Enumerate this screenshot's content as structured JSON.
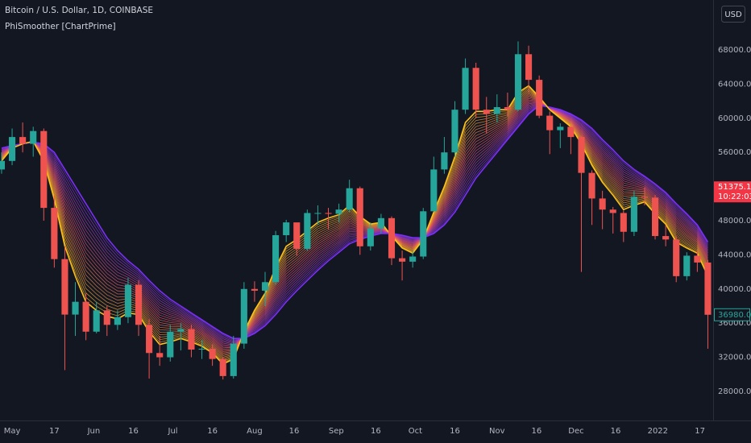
{
  "chart_data": {
    "type": "candlestick",
    "title": "Bitcoin / U.S. Dollar, 1D, COINBASE",
    "indicator": "PhiSmoother [ChartPrime]",
    "currency": "USD",
    "indicator_value": 51375.13,
    "countdown": "10:22:03",
    "last_price": 36980,
    "last_price_label": "36980.00",
    "up_color": "#26a69a",
    "down_color": "#ef5350",
    "fast_color": "#ffc21a",
    "slow_color": "#7b2ff7",
    "indicator_color": "#f23645",
    "grid": false,
    "xlim": [
      -4.6,
      266
    ],
    "ylim": [
      24600,
      73850
    ],
    "xticks": [
      {
        "value": 0,
        "label": "May"
      },
      {
        "value": 16,
        "label": "17"
      },
      {
        "value": 31,
        "label": "Jun"
      },
      {
        "value": 46,
        "label": "16"
      },
      {
        "value": 61,
        "label": "Jul"
      },
      {
        "value": 76,
        "label": "16"
      },
      {
        "value": 92,
        "label": "Aug"
      },
      {
        "value": 107,
        "label": "16"
      },
      {
        "value": 123,
        "label": "Sep"
      },
      {
        "value": 138,
        "label": "16"
      },
      {
        "value": 153,
        "label": "Oct"
      },
      {
        "value": 168,
        "label": "16"
      },
      {
        "value": 184,
        "label": "Nov"
      },
      {
        "value": 199,
        "label": "16"
      },
      {
        "value": 214,
        "label": "Dec"
      },
      {
        "value": 229,
        "label": "16"
      },
      {
        "value": 245,
        "label": "2022"
      },
      {
        "value": 261,
        "label": "17"
      }
    ],
    "yticks": [
      {
        "value": 28000,
        "label": "28000.00"
      },
      {
        "value": 32000,
        "label": "32000.00"
      },
      {
        "value": 36000,
        "label": "36000.00"
      },
      {
        "value": 40000,
        "label": "40000.00"
      },
      {
        "value": 44000,
        "label": "44000.00"
      },
      {
        "value": 48000,
        "label": "48000.00"
      },
      {
        "value": 52000,
        "label": "52000.00"
      },
      {
        "value": 56000,
        "label": "56000.00"
      },
      {
        "value": 60000,
        "label": "60000.00"
      },
      {
        "value": 64000,
        "label": "64000.00"
      },
      {
        "value": 68000,
        "label": "68000.00"
      }
    ],
    "x": [
      -4,
      0,
      4,
      8,
      12,
      16,
      20,
      24,
      28,
      32,
      36,
      40,
      44,
      48,
      52,
      56,
      60,
      64,
      68,
      72,
      76,
      80,
      84,
      88,
      92,
      96,
      100,
      104,
      108,
      112,
      116,
      120,
      124,
      128,
      132,
      136,
      140,
      144,
      148,
      152,
      156,
      160,
      164,
      168,
      172,
      176,
      180,
      184,
      188,
      192,
      196,
      200,
      204,
      208,
      212,
      216,
      220,
      224,
      228,
      232,
      236,
      240,
      244,
      248,
      252,
      256,
      260,
      264
    ],
    "open": [
      54000,
      55000,
      57800,
      57000,
      58500,
      49500,
      43500,
      37000,
      38500,
      35000,
      37500,
      35800,
      36700,
      40500,
      35800,
      32500,
      32000,
      35000,
      35300,
      32900,
      33000,
      31800,
      29800,
      33600,
      40000,
      39800,
      40800,
      46300,
      47800,
      44700,
      48900,
      48900,
      48800,
      49300,
      51800,
      45000,
      47100,
      48300,
      43600,
      43200,
      43800,
      49100,
      54000,
      56000,
      61000,
      65900,
      61000,
      60500,
      61300,
      61000,
      67500,
      64500,
      60300,
      58600,
      59000,
      57800,
      53600,
      50600,
      49300,
      48900,
      46700,
      50800,
      50700,
      46200,
      45800,
      41500,
      43900,
      43100
    ],
    "high": [
      56000,
      58800,
      59500,
      59000,
      58800,
      51000,
      45000,
      40800,
      39500,
      38500,
      38000,
      37500,
      41300,
      41000,
      36500,
      34500,
      35800,
      36000,
      35800,
      34000,
      33500,
      32000,
      34500,
      40800,
      40900,
      42000,
      46800,
      48100,
      47500,
      49300,
      49800,
      49500,
      50000,
      52800,
      52000,
      47800,
      48800,
      48500,
      44500,
      44500,
      49500,
      55500,
      57800,
      62000,
      67000,
      66500,
      62500,
      62800,
      63000,
      69000,
      68500,
      65000,
      60800,
      59400,
      59200,
      57900,
      53900,
      51500,
      49600,
      49200,
      51500,
      51900,
      51000,
      47500,
      46200,
      44300,
      44500,
      43400
    ],
    "low": [
      53500,
      54500,
      56000,
      55500,
      48000,
      42500,
      30500,
      34500,
      34000,
      34800,
      34500,
      35200,
      36000,
      34500,
      29500,
      31000,
      31500,
      32800,
      32000,
      31800,
      31000,
      29400,
      29500,
      33000,
      38500,
      38000,
      40500,
      45500,
      43900,
      44500,
      47500,
      47000,
      47800,
      49000,
      44000,
      44500,
      46500,
      42800,
      41000,
      42500,
      43500,
      49000,
      53500,
      55500,
      60500,
      60000,
      58200,
      59500,
      60200,
      60800,
      63000,
      60000,
      55800,
      56500,
      55800,
      42000,
      47500,
      47000,
      46500,
      45500,
      46200,
      49800,
      45800,
      45000,
      40800,
      41000,
      42000,
      33000
    ],
    "close": [
      55000,
      57800,
      57000,
      58500,
      49500,
      43500,
      37000,
      38500,
      35000,
      37500,
      35800,
      36700,
      40500,
      35800,
      32500,
      32000,
      35000,
      35300,
      32900,
      33000,
      31800,
      29800,
      33600,
      40000,
      39800,
      40800,
      46300,
      47800,
      44700,
      48900,
      48900,
      48800,
      49300,
      51800,
      45000,
      47100,
      48300,
      43600,
      43200,
      43800,
      49100,
      54000,
      56000,
      61000,
      65900,
      61000,
      60500,
      61300,
      61000,
      67500,
      64500,
      60300,
      58600,
      59000,
      57800,
      53600,
      50600,
      49300,
      48900,
      46700,
      50800,
      50700,
      46200,
      45800,
      41500,
      43900,
      43100,
      36980
    ],
    "ribbon_fast": [
      55000,
      56500,
      57000,
      57300,
      55000,
      50500,
      45000,
      41500,
      38500,
      37500,
      36800,
      36500,
      37200,
      37000,
      35000,
      33500,
      33800,
      34200,
      33800,
      33300,
      32500,
      31200,
      31800,
      35000,
      37500,
      39500,
      42500,
      45000,
      45800,
      46800,
      47800,
      48300,
      48700,
      49800,
      48500,
      47600,
      47800,
      46200,
      44800,
      44200,
      45800,
      49000,
      52000,
      55500,
      59500,
      60800,
      60800,
      61000,
      61000,
      63000,
      63800,
      62500,
      61000,
      60000,
      59000,
      57000,
      54500,
      52500,
      51000,
      49300,
      49800,
      50200,
      48800,
      47600,
      45500,
      44800,
      44200,
      41500
    ],
    "ribbon_slow": [
      56500,
      56800,
      57000,
      57200,
      57000,
      56000,
      54000,
      52000,
      50000,
      48000,
      46000,
      44500,
      43300,
      42300,
      41000,
      39800,
      38800,
      38000,
      37200,
      36400,
      35600,
      34800,
      34200,
      34200,
      34800,
      35700,
      37000,
      38500,
      39800,
      41000,
      42200,
      43300,
      44300,
      45300,
      45800,
      46200,
      46500,
      46500,
      46300,
      46000,
      46000,
      46500,
      47500,
      49000,
      51000,
      53000,
      54500,
      56000,
      57500,
      59000,
      60500,
      61500,
      61300,
      61000,
      60500,
      59800,
      58800,
      57500,
      56300,
      55000,
      54000,
      53200,
      52300,
      51300,
      50000,
      48800,
      47500,
      45500
    ]
  }
}
